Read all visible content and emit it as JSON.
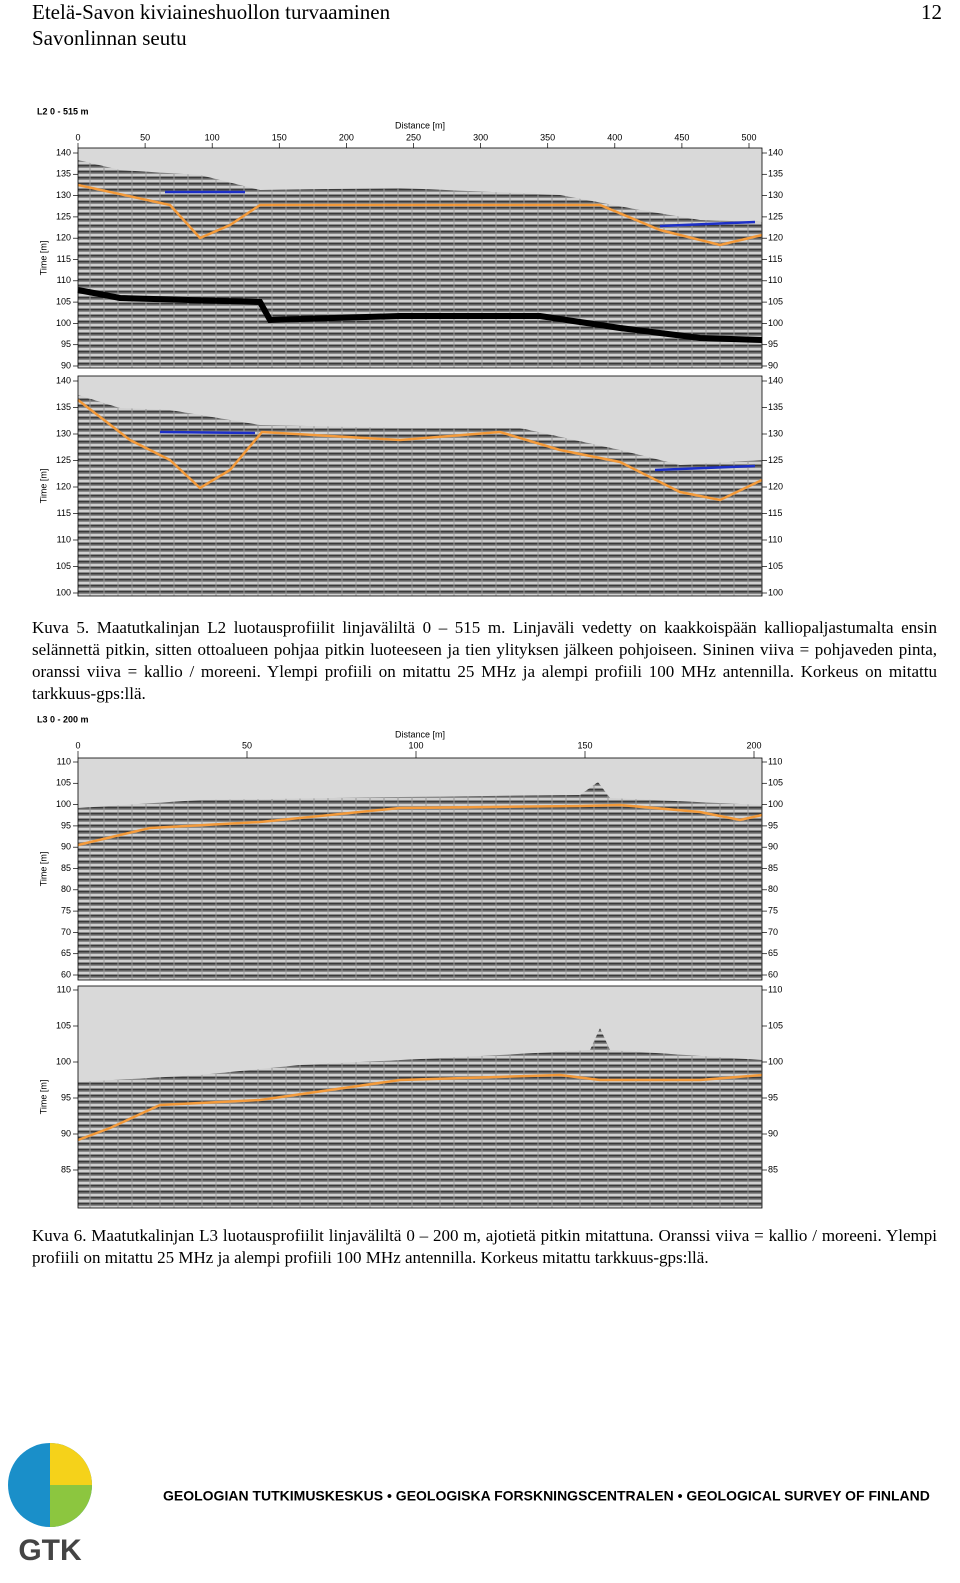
{
  "header": {
    "title": "Etelä-Savon kiviaineshuollon turvaaminen",
    "subtitle": "Savonlinnan seutu",
    "page": "12"
  },
  "figures": [
    {
      "profile_label": "L2 0 - 515 m",
      "x_label": "Distance [m]",
      "y_label": "Time [m]",
      "x_ticks": [
        0,
        50,
        100,
        150,
        200,
        250,
        300,
        350,
        400,
        450,
        500
      ],
      "panels": [
        {
          "y_ticks": [
            140,
            135,
            130,
            125,
            120,
            115,
            110,
            105,
            100,
            95,
            90
          ]
        },
        {
          "y_ticks": [
            140,
            135,
            130,
            125,
            120,
            115,
            110,
            105,
            100
          ]
        }
      ],
      "caption": "Kuva 5. Maatutkalinjan L2 luotausprofiilit linjaväliltä 0 – 515 m. Linjaväli vedetty on kaakkoispään kalliopaljastumalta ensin selännettä pitkin, sitten ottoalueen pohjaa pitkin luoteeseen ja tien ylityksen jälkeen pohjoiseen. Sininen viiva = pohjaveden pinta, oranssi viiva = kallio / moreeni. Ylempi profiili on mitattu 25 MHz ja alempi profiili 100 MHz antennilla. Korkeus on mitattu tarkkuus-gps:llä."
    },
    {
      "profile_label": "L3 0 - 200 m",
      "x_label": "Distance [m]",
      "y_label": "Time [m]",
      "x_ticks": [
        0,
        50,
        100,
        150,
        200
      ],
      "panels": [
        {
          "y_ticks": [
            110,
            105,
            100,
            95,
            90,
            85,
            80,
            75,
            70,
            65,
            60
          ]
        },
        {
          "y_ticks": [
            110,
            105,
            100,
            95,
            90,
            85
          ]
        }
      ],
      "caption": "Kuva 6. Maatutkalinjan L3 luotausprofiilit linjaväliltä 0 – 200 m, ajotietä pitkin mitattuna. Oranssi viiva = kallio / moreeni. Ylempi profiili on mitattu 25 MHz ja alempi profiili 100 MHz antennilla. Korkeus mitattu tarkkuus-gps:llä."
    }
  ],
  "footer": {
    "logo": "GTK",
    "org": "GEOLOGIAN TUTKIMUSKESKUS • GEOLOGISKA FORSKNINGSCENTRALEN • GEOLOGICAL SURVEY OF FINLAND"
  }
}
